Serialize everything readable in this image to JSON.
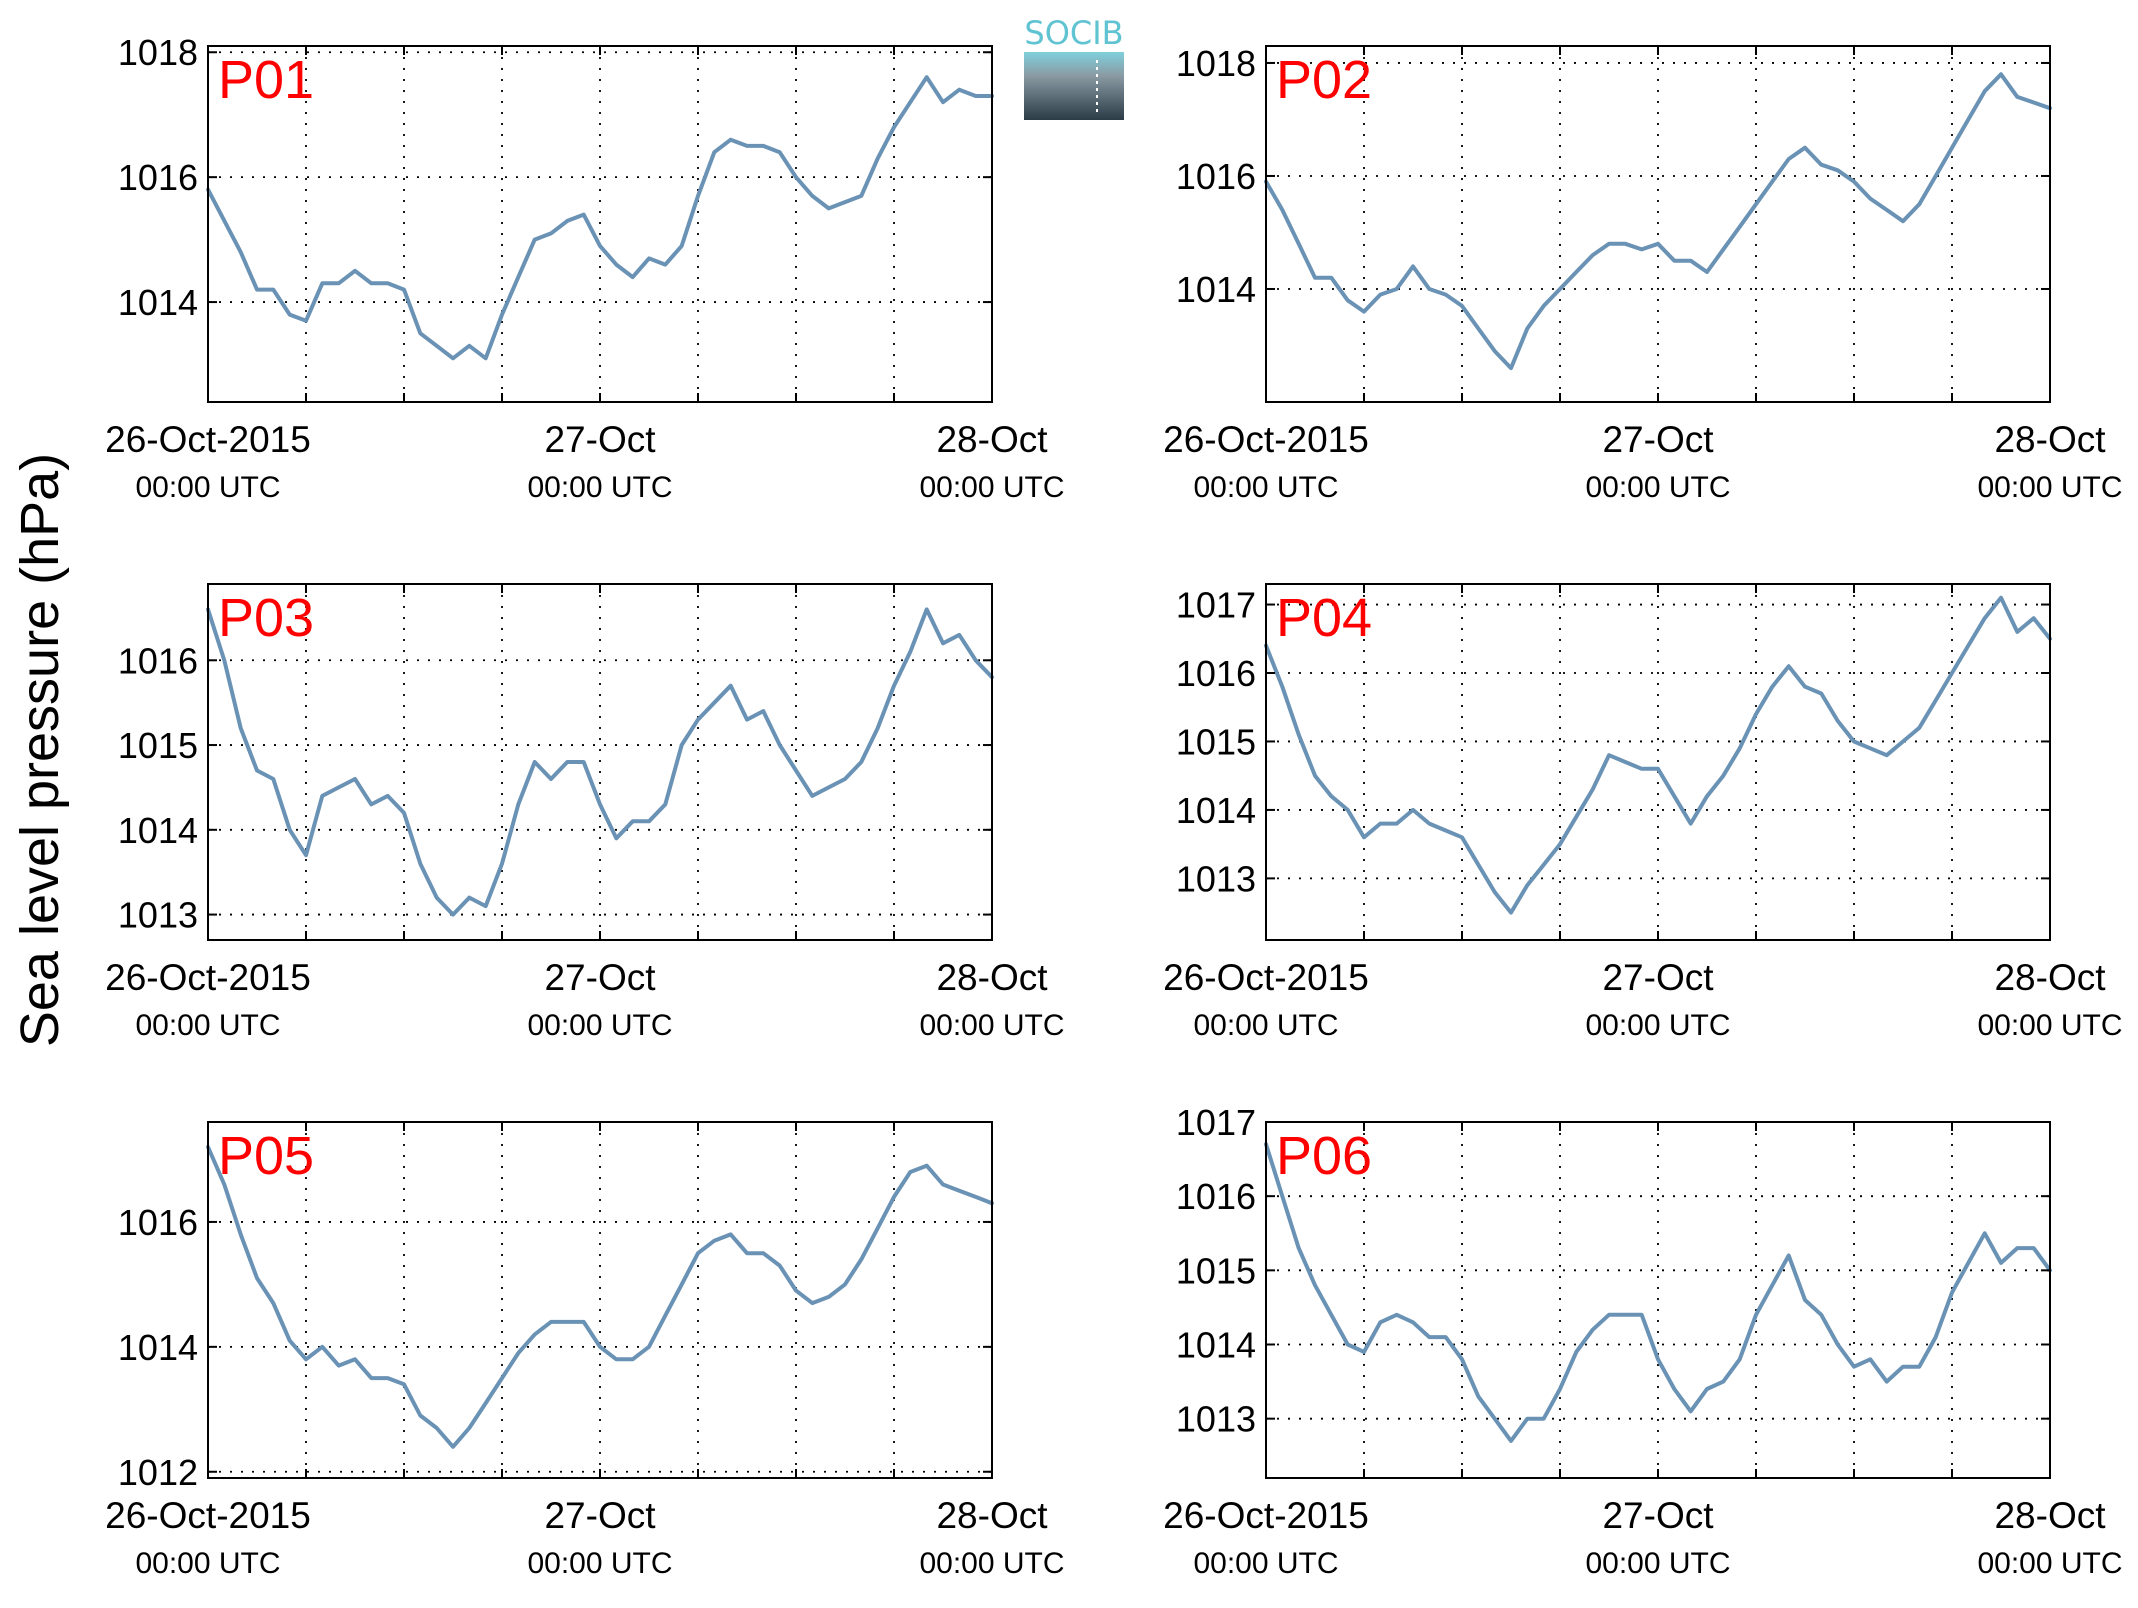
{
  "figure": {
    "ylabel": "Sea level pressure (hPa)",
    "logo": {
      "text": "SOCIB",
      "colors": {
        "text": "#5fc3d2",
        "top": "#7fd0dc",
        "bottom": "#2b3b47"
      }
    }
  },
  "colors": {
    "line": "#6a92b5",
    "label": "#ff0000",
    "grid": "#000000"
  },
  "chart_data": [
    {
      "type": "line",
      "title": "P01",
      "xlim": [
        0,
        48
      ],
      "ylim": [
        1012.4,
        1018.1
      ],
      "yticks": [
        1014,
        1016,
        1018
      ],
      "xgrid": [
        6,
        12,
        18,
        24,
        30,
        36,
        42
      ],
      "xticks": [
        {
          "x": 0,
          "label": "26-Oct-2015",
          "sub": "00:00 UTC"
        },
        {
          "x": 24,
          "label": "27-Oct",
          "sub": "00:00 UTC"
        },
        {
          "x": 48,
          "label": "28-Oct",
          "sub": "00:00 UTC"
        }
      ],
      "x": [
        0,
        2,
        3,
        4,
        5,
        6,
        7,
        8,
        9,
        10,
        11,
        12,
        13,
        14,
        15,
        16,
        17,
        18,
        19,
        20,
        21,
        22,
        23,
        24,
        25,
        26,
        27,
        28,
        29,
        30,
        31,
        32,
        33,
        34,
        35,
        36,
        37,
        38,
        39,
        40,
        41,
        42,
        43,
        44,
        45,
        46,
        47,
        48
      ],
      "y": [
        1015.8,
        1014.8,
        1014.2,
        1014.2,
        1013.8,
        1013.7,
        1014.3,
        1014.3,
        1014.5,
        1014.3,
        1014.3,
        1014.2,
        1013.5,
        1013.3,
        1013.1,
        1013.3,
        1013.1,
        1013.8,
        1014.4,
        1015.0,
        1015.1,
        1015.3,
        1015.4,
        1014.9,
        1014.6,
        1014.4,
        1014.7,
        1014.6,
        1014.9,
        1015.7,
        1016.4,
        1016.6,
        1016.5,
        1016.5,
        1016.4,
        1016.0,
        1015.7,
        1015.5,
        1015.6,
        1015.7,
        1016.3,
        1016.8,
        1017.2,
        1017.6,
        1017.2,
        1017.4,
        1017.3,
        1017.3
      ]
    },
    {
      "type": "line",
      "title": "P02",
      "xlim": [
        0,
        48
      ],
      "ylim": [
        1012.0,
        1018.3
      ],
      "yticks": [
        1014,
        1016,
        1018
      ],
      "xgrid": [
        6,
        12,
        18,
        24,
        30,
        36,
        42
      ],
      "xticks": [
        {
          "x": 0,
          "label": "26-Oct-2015",
          "sub": "00:00 UTC"
        },
        {
          "x": 24,
          "label": "27-Oct",
          "sub": "00:00 UTC"
        },
        {
          "x": 48,
          "label": "28-Oct",
          "sub": "00:00 UTC"
        }
      ],
      "x": [
        0,
        1,
        2,
        3,
        4,
        5,
        6,
        7,
        8,
        9,
        10,
        11,
        12,
        13,
        14,
        15,
        16,
        17,
        18,
        19,
        20,
        21,
        22,
        23,
        24,
        25,
        26,
        27,
        28,
        29,
        30,
        31,
        32,
        33,
        34,
        35,
        36,
        37,
        38,
        39,
        40,
        41,
        42,
        43,
        44,
        45,
        46,
        47,
        48
      ],
      "y": [
        1015.9,
        1015.4,
        1014.8,
        1014.2,
        1014.2,
        1013.8,
        1013.6,
        1013.9,
        1014.0,
        1014.4,
        1014.0,
        1013.9,
        1013.7,
        1013.3,
        1012.9,
        1012.6,
        1013.3,
        1013.7,
        1014.0,
        1014.3,
        1014.6,
        1014.8,
        1014.8,
        1014.7,
        1014.8,
        1014.5,
        1014.5,
        1014.3,
        1014.7,
        1015.1,
        1015.5,
        1015.9,
        1016.3,
        1016.5,
        1016.2,
        1016.1,
        1015.9,
        1015.6,
        1015.4,
        1015.2,
        1015.5,
        1016.0,
        1016.5,
        1017.0,
        1017.5,
        1017.8,
        1017.4,
        1017.3,
        1017.2
      ]
    },
    {
      "type": "line",
      "title": "P03",
      "xlim": [
        0,
        48
      ],
      "ylim": [
        1012.7,
        1016.9
      ],
      "yticks": [
        1013,
        1014,
        1015,
        1016
      ],
      "xgrid": [
        6,
        12,
        18,
        24,
        30,
        36,
        42
      ],
      "xticks": [
        {
          "x": 0,
          "label": "26-Oct-2015",
          "sub": "00:00 UTC"
        },
        {
          "x": 24,
          "label": "27-Oct",
          "sub": "00:00 UTC"
        },
        {
          "x": 48,
          "label": "28-Oct",
          "sub": "00:00 UTC"
        }
      ],
      "x": [
        0,
        1,
        2,
        3,
        4,
        5,
        6,
        7,
        8,
        9,
        10,
        11,
        12,
        13,
        14,
        15,
        16,
        17,
        18,
        19,
        20,
        21,
        22,
        23,
        24,
        25,
        26,
        27,
        28,
        29,
        30,
        31,
        32,
        33,
        34,
        35,
        36,
        37,
        38,
        39,
        40,
        41,
        42,
        43,
        44,
        45,
        46,
        47,
        48
      ],
      "y": [
        1016.6,
        1016.0,
        1015.2,
        1014.7,
        1014.6,
        1014.0,
        1013.7,
        1014.4,
        1014.5,
        1014.6,
        1014.3,
        1014.4,
        1014.2,
        1013.6,
        1013.2,
        1013.0,
        1013.2,
        1013.1,
        1013.6,
        1014.3,
        1014.8,
        1014.6,
        1014.8,
        1014.8,
        1014.3,
        1013.9,
        1014.1,
        1014.1,
        1014.3,
        1015.0,
        1015.3,
        1015.5,
        1015.7,
        1015.3,
        1015.4,
        1015.0,
        1014.7,
        1014.4,
        1014.5,
        1014.6,
        1014.8,
        1015.2,
        1015.7,
        1016.1,
        1016.6,
        1016.2,
        1016.3,
        1016.0,
        1015.8
      ]
    },
    {
      "type": "line",
      "title": "P04",
      "xlim": [
        0,
        48
      ],
      "ylim": [
        1012.1,
        1017.3
      ],
      "yticks": [
        1013,
        1014,
        1015,
        1016,
        1017
      ],
      "xgrid": [
        6,
        12,
        18,
        24,
        30,
        36,
        42
      ],
      "xticks": [
        {
          "x": 0,
          "label": "26-Oct-2015",
          "sub": "00:00 UTC"
        },
        {
          "x": 24,
          "label": "27-Oct",
          "sub": "00:00 UTC"
        },
        {
          "x": 48,
          "label": "28-Oct",
          "sub": "00:00 UTC"
        }
      ],
      "x": [
        0,
        1,
        2,
        3,
        4,
        5,
        6,
        7,
        8,
        9,
        10,
        11,
        12,
        13,
        14,
        15,
        16,
        17,
        18,
        19,
        20,
        21,
        22,
        23,
        24,
        25,
        26,
        27,
        28,
        29,
        30,
        31,
        32,
        33,
        34,
        35,
        36,
        37,
        38,
        39,
        40,
        41,
        42,
        43,
        44,
        45,
        46,
        47,
        48
      ],
      "y": [
        1016.4,
        1015.8,
        1015.1,
        1014.5,
        1014.2,
        1014.0,
        1013.6,
        1013.8,
        1013.8,
        1014.0,
        1013.8,
        1013.7,
        1013.6,
        1013.2,
        1012.8,
        1012.5,
        1012.9,
        1013.2,
        1013.5,
        1013.9,
        1014.3,
        1014.8,
        1014.7,
        1014.6,
        1014.6,
        1014.2,
        1013.8,
        1014.2,
        1014.5,
        1014.9,
        1015.4,
        1015.8,
        1016.1,
        1015.8,
        1015.7,
        1015.3,
        1015.0,
        1014.9,
        1014.8,
        1015.0,
        1015.2,
        1015.6,
        1016.0,
        1016.4,
        1016.8,
        1017.1,
        1016.6,
        1016.8,
        1016.5
      ]
    },
    {
      "type": "line",
      "title": "P05",
      "xlim": [
        0,
        48
      ],
      "ylim": [
        1011.9,
        1017.6
      ],
      "yticks": [
        1012,
        1014,
        1016
      ],
      "xgrid": [
        6,
        12,
        18,
        24,
        30,
        36,
        42
      ],
      "xticks": [
        {
          "x": 0,
          "label": "26-Oct-2015",
          "sub": "00:00 UTC"
        },
        {
          "x": 24,
          "label": "27-Oct",
          "sub": "00:00 UTC"
        },
        {
          "x": 48,
          "label": "28-Oct",
          "sub": "00:00 UTC"
        }
      ],
      "x": [
        0,
        1,
        2,
        3,
        4,
        5,
        6,
        7,
        8,
        9,
        10,
        11,
        12,
        13,
        14,
        15,
        16,
        17,
        18,
        19,
        20,
        21,
        22,
        23,
        24,
        25,
        26,
        27,
        28,
        29,
        30,
        31,
        32,
        33,
        34,
        35,
        36,
        37,
        38,
        39,
        40,
        41,
        42,
        43,
        44,
        45,
        46,
        47,
        48
      ],
      "y": [
        1017.2,
        1016.6,
        1015.8,
        1015.1,
        1014.7,
        1014.1,
        1013.8,
        1014.0,
        1013.7,
        1013.8,
        1013.5,
        1013.5,
        1013.4,
        1012.9,
        1012.7,
        1012.4,
        1012.7,
        1013.1,
        1013.5,
        1013.9,
        1014.2,
        1014.4,
        1014.4,
        1014.4,
        1014.0,
        1013.8,
        1013.8,
        1014.0,
        1014.5,
        1015.0,
        1015.5,
        1015.7,
        1015.8,
        1015.5,
        1015.5,
        1015.3,
        1014.9,
        1014.7,
        1014.8,
        1015.0,
        1015.4,
        1015.9,
        1016.4,
        1016.8,
        1016.9,
        1016.6,
        1016.5,
        1016.4,
        1016.3
      ]
    },
    {
      "type": "line",
      "title": "P06",
      "xlim": [
        0,
        48
      ],
      "ylim": [
        1012.2,
        1017.0
      ],
      "yticks": [
        1013,
        1014,
        1015,
        1016,
        1017
      ],
      "xgrid": [
        6,
        12,
        18,
        24,
        30,
        36,
        42
      ],
      "xticks": [
        {
          "x": 0,
          "label": "26-Oct-2015",
          "sub": "00:00 UTC"
        },
        {
          "x": 24,
          "label": "27-Oct",
          "sub": "00:00 UTC"
        },
        {
          "x": 48,
          "label": "28-Oct",
          "sub": "00:00 UTC"
        }
      ],
      "x": [
        0,
        1,
        2,
        3,
        4,
        5,
        6,
        7,
        8,
        9,
        10,
        11,
        12,
        13,
        14,
        15,
        16,
        17,
        18,
        19,
        20,
        21,
        22,
        23,
        24,
        25,
        26,
        27,
        28,
        29,
        30,
        31,
        32,
        33,
        34,
        35,
        36,
        37,
        38,
        39,
        40,
        41,
        42,
        43,
        44,
        45,
        46,
        47,
        48
      ],
      "y": [
        1016.7,
        1016.0,
        1015.3,
        1014.8,
        1014.4,
        1014.0,
        1013.9,
        1014.3,
        1014.4,
        1014.3,
        1014.1,
        1014.1,
        1013.8,
        1013.3,
        1013.0,
        1012.7,
        1013.0,
        1013.0,
        1013.4,
        1013.9,
        1014.2,
        1014.4,
        1014.4,
        1014.4,
        1013.8,
        1013.4,
        1013.1,
        1013.4,
        1013.5,
        1013.8,
        1014.4,
        1014.8,
        1015.2,
        1014.6,
        1014.4,
        1014.0,
        1013.7,
        1013.8,
        1013.5,
        1013.7,
        1013.7,
        1014.1,
        1014.7,
        1015.1,
        1015.5,
        1015.1,
        1015.3,
        1015.3,
        1015.0
      ]
    }
  ]
}
